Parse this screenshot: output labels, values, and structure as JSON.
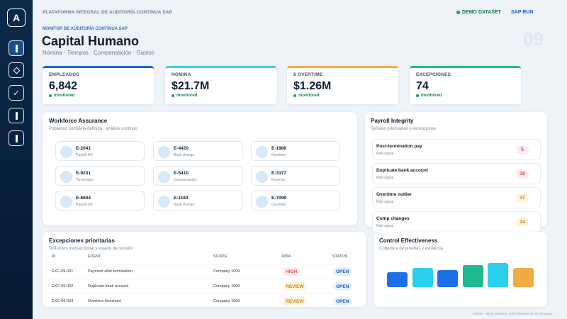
{
  "app": {
    "logo_letter": "A",
    "platform_title": "PLATAFORMA INTEGRAL DE AUDITORÍA CONTINUA SAP",
    "demo_label": "DEMO DATASET",
    "run_label": "SAP RUN",
    "section_label": "MONITOR DE AUDITORÍA CONTINUA SAP",
    "page_title": "Capital Humano",
    "page_subtitle": "Nómina · Tiempos · Compensación · Gastos",
    "page_number": "09"
  },
  "sidebar": {
    "items": [
      {
        "icon": "bar-icon",
        "active": true
      },
      {
        "icon": "diamond-icon",
        "active": false
      },
      {
        "icon": "check-icon",
        "active": false
      },
      {
        "icon": "bar-icon",
        "active": false
      },
      {
        "icon": "bar-icon",
        "active": false
      }
    ]
  },
  "kpis": [
    {
      "label": "EMPLEADOS",
      "value": "6,842",
      "status": "monitored",
      "color": "#2167d6"
    },
    {
      "label": "NÓMINA",
      "value": "$21.7M",
      "status": "monitored",
      "color": "#36cfe0"
    },
    {
      "label": "$ OVERTIME",
      "value": "$1.26M",
      "status": "monitored",
      "color": "#f0ad4e"
    },
    {
      "label": "EXCEPCIONES",
      "value": "74",
      "status": "monitored",
      "color": "#1fbf8f"
    }
  ],
  "workforce": {
    "title": "Workforce Assurance",
    "subtitle": "Población completa definida · análisis continuo",
    "employees": [
      {
        "id": "E-2041",
        "label": "Payroll OK"
      },
      {
        "id": "E-4420",
        "label": "Bank change"
      },
      {
        "id": "E-1889",
        "label": "Overtime"
      },
      {
        "id": "E-9231",
        "label": "Terminated"
      },
      {
        "id": "E-5410",
        "label": "Compensation"
      },
      {
        "id": "E-3377",
        "label": "Expense"
      },
      {
        "id": "E-6604",
        "label": "Payroll OK"
      },
      {
        "id": "E-1183",
        "label": "Bank change"
      },
      {
        "id": "E-7099",
        "label": "Overtime"
      }
    ]
  },
  "payroll": {
    "title": "Payroll Integrity",
    "subtitle": "Señales priorizadas y excepciones",
    "signals": [
      {
        "name": "Post-termination pay",
        "label": "Risk signal",
        "value": "5",
        "color": "#e0515b",
        "bg": "#fdecee"
      },
      {
        "name": "Duplicate bank account",
        "label": "Risk signal",
        "value": "18",
        "color": "#e0515b",
        "bg": "#fdecee"
      },
      {
        "name": "Overtime outlier",
        "label": "Risk signal",
        "value": "37",
        "color": "#c98a12",
        "bg": "#fdf3df"
      },
      {
        "name": "Comp changes",
        "label": "Risk signal",
        "value": "14",
        "color": "#c98a12",
        "bg": "#fdf3df"
      }
    ]
  },
  "exceptions": {
    "title": "Excepciones prioritarias",
    "subtitle": "Drill-down transaccional y estado de revisión",
    "columns": [
      "ID",
      "EVENT",
      "SCOPE",
      "RISK",
      "STATUS"
    ],
    "rows": [
      {
        "id": "EXC-09-001",
        "event": "Payment after termination",
        "scope": "Company 1009",
        "risk": "HIGH",
        "status": "OPEN"
      },
      {
        "id": "EXC-09-002",
        "event": "Duplicate bank account",
        "scope": "Company 1009",
        "risk": "REVIEW",
        "status": "OPEN"
      },
      {
        "id": "EXC-09-003",
        "event": "Overtime threshold",
        "scope": "Company 1009",
        "risk": "REVIEW",
        "status": "OPEN"
      }
    ]
  },
  "control": {
    "title": "Control Effectiveness",
    "subtitle": "Cobertura de pruebas y evidencia",
    "bars": [
      {
        "value": 0.57,
        "color": "#1f6fe8"
      },
      {
        "value": 0.76,
        "color": "#2ad0ec"
      },
      {
        "value": 0.67,
        "color": "#1f6fe8"
      },
      {
        "value": 0.86,
        "color": "#21b98e"
      },
      {
        "value": 0.95,
        "color": "#2ad0ec"
      },
      {
        "value": 0.76,
        "color": "#f0ab45"
      }
    ]
  },
  "footer": "DEMO · datos sintéticos para visualización del producto"
}
